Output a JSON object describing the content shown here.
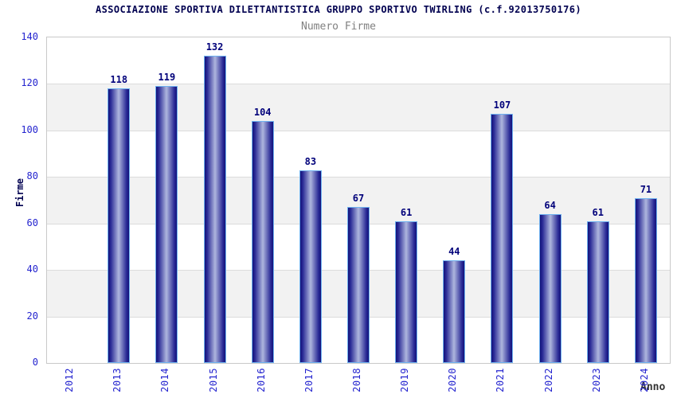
{
  "header": {
    "title": "ASSOCIAZIONE SPORTIVA DILETTANTISTICA GRUPPO SPORTIVO TWIRLING (c.f.92013750176)",
    "subtitle": "Numero Firme"
  },
  "chart_data": {
    "type": "bar",
    "title": "Numero Firme",
    "categories": [
      "2012",
      "2013",
      "2014",
      "2015",
      "2016",
      "2017",
      "2018",
      "2019",
      "2020",
      "2021",
      "2022",
      "2023",
      "2024"
    ],
    "values": [
      null,
      118,
      119,
      132,
      104,
      83,
      67,
      61,
      44,
      107,
      64,
      61,
      71
    ],
    "xlabel": "Anno",
    "ylabel": "Firme",
    "ylim": [
      0,
      140
    ],
    "ytick_step": 20,
    "yticks": [
      0,
      20,
      40,
      60,
      80,
      100,
      120,
      140
    ],
    "grid": true,
    "legend": "none",
    "colors": {
      "bar_dark": "#12127a",
      "bar_mid": "#2a2a96",
      "bar_light": "#aeb6de",
      "bar_border": "#6fb2f0",
      "tick_label": "#2424cf",
      "value_label": "#00007a",
      "title": "#000050",
      "subtitle": "#808080",
      "band": "#f2f2f2",
      "gridline": "#dcdcdc"
    }
  }
}
